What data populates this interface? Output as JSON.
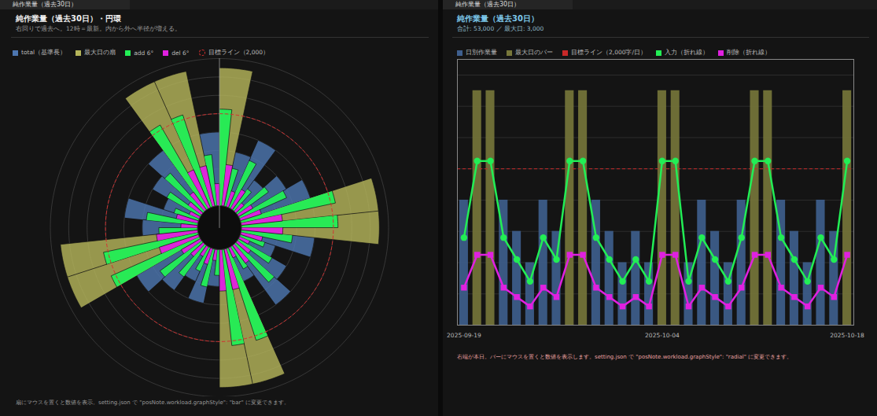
{
  "tabs": [
    "純作業量（過去30日）",
    "純作業量（過去30日）"
  ],
  "chart_data": [
    {
      "type": "radial_bar",
      "title": "純作業量（過去30日）・円環",
      "subtitle": "右回りで過去へ。12時＝最新。内から外へ半径が増える。",
      "caption": "扇にマウスを置くと数値を表示。setting.json で \"posNote.workload.graphStyle\": \"bar\" に変更できます。",
      "legend": "top",
      "grid": true,
      "tick_labels": false,
      "rlim": [
        0,
        3200
      ],
      "rticks": [
        400,
        800,
        1200,
        1600,
        2000,
        2400,
        2800,
        3200
      ],
      "target_line": {
        "label": "目標ライン（2,000）",
        "value": 2000,
        "color": "#d03030",
        "line_style": "dashed"
      },
      "series": [
        {
          "name": "total（基準長）",
          "type": "wedge",
          "color": "#4d76b0",
          "values": [
            1600,
            null,
            null,
            1600,
            1200,
            800,
            1600,
            1200,
            null,
            null,
            1600,
            1200,
            800,
            1200,
            800,
            null,
            null,
            800,
            1600,
            1200,
            800,
            1600,
            null,
            null,
            1600,
            1200,
            800,
            1600,
            1200,
            null
          ]
        },
        {
          "name": "最大日の扇",
          "type": "wedge",
          "color": "#b5b55a",
          "values": [
            null,
            3000,
            3000,
            null,
            null,
            null,
            null,
            null,
            3000,
            3000,
            null,
            null,
            null,
            null,
            null,
            3000,
            3000,
            null,
            null,
            null,
            null,
            null,
            3000,
            3000,
            null,
            null,
            null,
            null,
            null,
            3000
          ]
        },
        {
          "name": "add 6°",
          "type": "half_wedge",
          "color": "#22ee55",
          "values": [
            1120,
            2100,
            2100,
            1120,
            840,
            560,
            1120,
            840,
            2100,
            2100,
            1120,
            840,
            560,
            840,
            560,
            2100,
            2100,
            560,
            1120,
            840,
            560,
            1120,
            2100,
            2100,
            1120,
            840,
            560,
            1120,
            840,
            2100
          ]
        },
        {
          "name": "del 6°",
          "type": "half_wedge",
          "color": "#e020e0",
          "values": [
            480,
            900,
            900,
            480,
            360,
            240,
            480,
            360,
            900,
            900,
            480,
            360,
            240,
            360,
            240,
            900,
            900,
            240,
            480,
            360,
            240,
            480,
            900,
            900,
            480,
            360,
            240,
            480,
            360,
            900
          ]
        }
      ]
    },
    {
      "type": "bar",
      "title": "純作業量（過去30日）",
      "subtitle": "合計: 53,000 ／ 最大日: 3,000",
      "caption": "右端が本日。バーにマウスを置くと数値を表示します。setting.json で \"posNote.workload.graphStyle\": \"radial\" に変更できます。",
      "legend": "top",
      "grid": true,
      "tick_labels": "x",
      "categories": [
        "2025-09-19",
        null,
        null,
        null,
        null,
        null,
        null,
        null,
        null,
        null,
        null,
        null,
        null,
        null,
        null,
        "2025-10-04",
        null,
        null,
        null,
        null,
        null,
        null,
        null,
        null,
        null,
        null,
        null,
        null,
        null,
        "2025-10-18"
      ],
      "ylim": [
        0,
        3400
      ],
      "yticks": [
        0,
        400,
        800,
        1200,
        1600,
        2000,
        2400,
        2800,
        3200
      ],
      "target_line": {
        "label": "目標ライン（2,000字/日）",
        "value": 2000,
        "color": "#c82828",
        "line_style": "dashed"
      },
      "series": [
        {
          "name": "日別作業量",
          "type": "bar",
          "color": "#3e5f8e",
          "values": [
            1600,
            null,
            null,
            1600,
            1200,
            800,
            1600,
            1200,
            null,
            null,
            1600,
            1200,
            800,
            1200,
            800,
            null,
            null,
            800,
            1600,
            1200,
            800,
            1600,
            null,
            null,
            1600,
            1200,
            800,
            1600,
            1200,
            null
          ]
        },
        {
          "name": "最大日のバー",
          "type": "bar",
          "color": "#77773a",
          "values": [
            null,
            3000,
            3000,
            null,
            null,
            null,
            null,
            null,
            3000,
            3000,
            null,
            null,
            null,
            null,
            null,
            3000,
            3000,
            null,
            null,
            null,
            null,
            null,
            3000,
            3000,
            null,
            null,
            null,
            null,
            null,
            3000
          ]
        },
        {
          "name": "入力（折れ線）",
          "type": "line",
          "color": "#22ee55",
          "marker": "circle",
          "values": [
            1120,
            2100,
            2100,
            1120,
            840,
            560,
            1120,
            840,
            2100,
            2100,
            1120,
            840,
            560,
            840,
            560,
            2100,
            2100,
            560,
            1120,
            840,
            560,
            1120,
            2100,
            2100,
            1120,
            840,
            560,
            1120,
            840,
            2100
          ]
        },
        {
          "name": "削除（折れ線）",
          "type": "line",
          "color": "#e020e0",
          "marker": "square",
          "values": [
            480,
            900,
            900,
            480,
            360,
            240,
            480,
            360,
            900,
            900,
            480,
            360,
            240,
            360,
            240,
            900,
            900,
            240,
            480,
            360,
            240,
            480,
            900,
            900,
            480,
            360,
            240,
            480,
            360,
            900
          ]
        }
      ]
    }
  ]
}
